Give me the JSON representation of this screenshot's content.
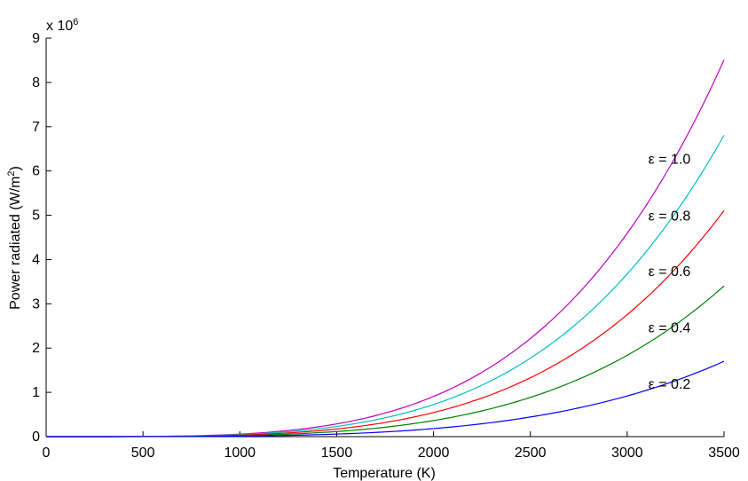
{
  "chart_data": {
    "type": "line",
    "xlabel": "Temperature (K)",
    "ylabel_main": "Power radiated (W/m",
    "ylabel_sup": "2",
    "ylabel_close": ")",
    "y_multiplier_base": "x 10",
    "y_multiplier_exp": "6",
    "xlim": [
      0,
      3500
    ],
    "ylim": [
      0,
      9
    ],
    "x_ticks": [
      0,
      500,
      1000,
      1500,
      2000,
      2500,
      3000,
      3500
    ],
    "y_ticks": [
      0,
      1,
      2,
      3,
      4,
      5,
      6,
      7,
      8,
      9
    ],
    "grid": false,
    "x_values": [
      0,
      250,
      500,
      750,
      1000,
      1250,
      1500,
      1750,
      2000,
      2250,
      2500,
      2750,
      3000,
      3250,
      3500
    ],
    "series": [
      {
        "emissivity": 1.0,
        "color": "#bf00bf",
        "label": "ε = 1.0",
        "values": [
          0,
          0.0002,
          0.0035,
          0.0179,
          0.0567,
          0.1384,
          0.2871,
          0.5318,
          0.9072,
          1.4532,
          2.2148,
          3.2428,
          4.5927,
          6.3266,
          8.5091
        ]
      },
      {
        "emissivity": 0.8,
        "color": "#00bfbf",
        "label": "ε = 0.8",
        "values": [
          0,
          0.0002,
          0.0028,
          0.0143,
          0.0454,
          0.1107,
          0.2297,
          0.4254,
          0.7258,
          1.1626,
          1.7719,
          2.5942,
          3.6742,
          5.0612,
          6.8073
        ]
      },
      {
        "emissivity": 0.6,
        "color": "#ff0000",
        "label": "ε = 0.6",
        "values": [
          0,
          0.0001,
          0.0021,
          0.0108,
          0.034,
          0.083,
          0.1723,
          0.3191,
          0.5443,
          0.8719,
          1.3289,
          1.9457,
          2.7556,
          3.7959,
          5.1055
        ]
      },
      {
        "emissivity": 0.4,
        "color": "#008000",
        "label": "ε = 0.4",
        "values": [
          0,
          0.0001,
          0.0014,
          0.0072,
          0.0227,
          0.0554,
          0.1148,
          0.2127,
          0.3629,
          0.5813,
          0.8859,
          1.2971,
          1.8371,
          2.5306,
          3.4036
        ]
      },
      {
        "emissivity": 0.2,
        "color": "#0000ff",
        "label": "ε = 0.2",
        "values": [
          0,
          0.0,
          0.0007,
          0.0036,
          0.0113,
          0.0277,
          0.0574,
          0.1064,
          0.1814,
          0.2906,
          0.443,
          0.6486,
          0.9185,
          1.2653,
          1.7018
        ]
      }
    ],
    "annotations": [
      {
        "text": "ε = 1.0",
        "x": 3100,
        "y": 6.28
      },
      {
        "text": "ε = 0.8",
        "x": 3100,
        "y": 5.0
      },
      {
        "text": "ε = 0.6",
        "x": 3100,
        "y": 3.75
      },
      {
        "text": "ε = 0.4",
        "x": 3100,
        "y": 2.48
      },
      {
        "text": "ε = 0.2",
        "x": 3100,
        "y": 1.2
      }
    ]
  }
}
